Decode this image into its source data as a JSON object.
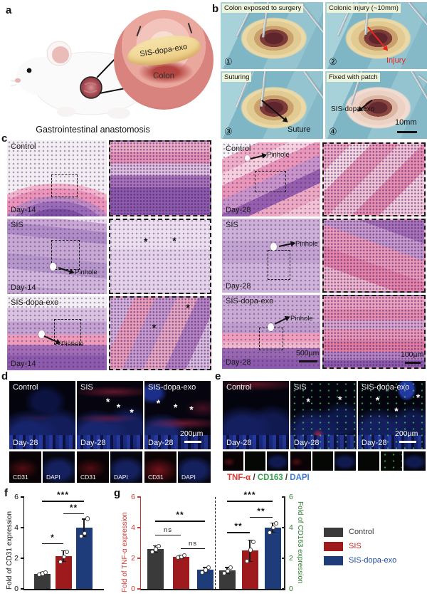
{
  "colors": {
    "control_bar": "#3a3a3a",
    "sis_bar": "#9e1a1d",
    "dopa_bar": "#1d3c79",
    "tnf_axis_red": "#cc3a33",
    "cd163_axis_green": "#2e7d32",
    "caption_red": "#e03a30",
    "caption_green": "#35a04a",
    "caption_blue": "#3b7bd4",
    "injury_red": "#e8261f"
  },
  "panel_a": {
    "letter": "a",
    "patch_label": "SIS-dopa-exo",
    "colon_label": "Colon",
    "caption": "Gastrointestinal anastomosis"
  },
  "panel_b": {
    "letter": "b",
    "photos": [
      {
        "number": "①",
        "title": "Colon exposed to surgery"
      },
      {
        "number": "②",
        "title": "Colonic injury (~10mm)",
        "annotation": "Injury"
      },
      {
        "number": "③",
        "title": "Suturing",
        "annotation": "Suture"
      },
      {
        "number": "④",
        "title": "Fixed with patch",
        "annotation": "SIS-dopa-exo",
        "scale_label": "10mm"
      }
    ]
  },
  "panel_c": {
    "letter": "c",
    "asterisk": "*",
    "rows_left": [
      {
        "group": "Control",
        "day": "Day-14"
      },
      {
        "group": "SIS",
        "day": "Day-14",
        "pinhole": "Pinhole"
      },
      {
        "group": "SIS-dopa-exo",
        "day": "Day-14",
        "pinhole": "Pinhole"
      }
    ],
    "rows_right": [
      {
        "group": "Control",
        "day": "Day-28",
        "pinhole": "Pinhole"
      },
      {
        "group": "SIS",
        "day": "Day-28",
        "pinhole": "Pinhole"
      },
      {
        "group": "SIS-dopa-exo",
        "day": "Day-28",
        "pinhole": "Pinhole",
        "scale_main": "500µm",
        "scale_inset": "100µm"
      }
    ]
  },
  "panel_d": {
    "letter": "d",
    "asterisk": "*",
    "columns": [
      {
        "group": "Control",
        "day": "Day-28",
        "channels": [
          "CD31",
          "DAPI"
        ]
      },
      {
        "group": "SIS",
        "day": "Day-28",
        "channels": [
          "CD31",
          "DAPI"
        ]
      },
      {
        "group": "SIS-dopa-exo",
        "day": "Day-28",
        "channels": [
          "CD31",
          "DAPI"
        ],
        "scale_label": "200µm"
      }
    ]
  },
  "panel_e": {
    "letter": "e",
    "asterisk": "*",
    "columns": [
      {
        "group": "Control",
        "day": "Day-28"
      },
      {
        "group": "SIS",
        "day": "Day-28"
      },
      {
        "group": "SIS-dopa-exo",
        "day": "Day-28",
        "scale_label": "200µm"
      }
    ],
    "caption": {
      "tnf": "TNF-α",
      "sep1": " / ",
      "cd163": "CD163",
      "sep2": " / ",
      "dapi": "DAPI"
    }
  },
  "panel_f": {
    "letter": "f"
  },
  "panel_g": {
    "letter": "g"
  },
  "legend": {
    "items": [
      {
        "label": "Control",
        "color": "#3a3a3a",
        "text_color": "#3a3a3a"
      },
      {
        "label": "SIS",
        "color": "#9e1a1d",
        "text_color": "#c42a26"
      },
      {
        "label": "SIS-dopa-exo",
        "color": "#1d3c79",
        "text_color": "#1f489b"
      }
    ]
  },
  "chart_data": [
    {
      "id": "f",
      "type": "bar",
      "ylabel": "Fold of CD31 expression",
      "ylim": [
        0,
        6
      ],
      "yticks": [
        0,
        2,
        4,
        6
      ],
      "categories": [
        "Control",
        "SIS",
        "SIS-dopa-exo"
      ],
      "values": [
        1.0,
        2.15,
        4.0
      ],
      "errors": [
        0.1,
        0.35,
        0.55
      ],
      "points": [
        [
          0.95,
          1.02,
          1.1
        ],
        [
          1.8,
          2.1,
          2.45
        ],
        [
          3.45,
          3.65,
          4.6
        ]
      ],
      "bar_colors": [
        "#3a3a3a",
        "#9e1a1d",
        "#1d3c79"
      ],
      "significance": [
        {
          "i": 0,
          "j": 1,
          "label": "*",
          "y": 3.0
        },
        {
          "i": 1,
          "j": 2,
          "label": "**",
          "y": 4.95
        },
        {
          "i": 0,
          "j": 2,
          "label": "***",
          "y": 5.75
        }
      ],
      "grid": false,
      "legend_position": "none"
    },
    {
      "id": "g",
      "type": "grouped-bar-dual-axis",
      "ylabel_left": "Fold of TNF-α expression",
      "ylabel_right": "Fold of CD163 expression",
      "ylim": [
        0,
        6
      ],
      "yticks": [
        0,
        2,
        4,
        6
      ],
      "categories": [
        "Control",
        "SIS",
        "SIS-dopa-exo"
      ],
      "bar_colors": [
        "#3a3a3a",
        "#9e1a1d",
        "#1d3c79"
      ],
      "groups": [
        {
          "name": "TNF-α",
          "values": [
            2.6,
            2.1,
            1.25
          ],
          "errors": [
            0.2,
            0.1,
            0.15
          ],
          "points": [
            [
              2.45,
              2.6,
              2.8
            ],
            [
              2.05,
              2.1,
              2.2
            ],
            [
              1.1,
              1.25,
              1.4
            ]
          ],
          "significance": [
            {
              "i": 0,
              "j": 1,
              "label": "ns",
              "y": 3.55
            },
            {
              "i": 1,
              "j": 2,
              "label": "ns",
              "y": 2.65
            },
            {
              "i": 0,
              "j": 2,
              "label": "**",
              "y": 4.45
            }
          ]
        },
        {
          "name": "CD163",
          "values": [
            1.2,
            2.5,
            4.0
          ],
          "errors": [
            0.2,
            0.7,
            0.3
          ],
          "points": [
            [
              1.05,
              1.2,
              1.4
            ],
            [
              1.85,
              2.55,
              3.1
            ],
            [
              3.7,
              4.0,
              4.3
            ]
          ],
          "significance": [
            {
              "i": 0,
              "j": 1,
              "label": "**",
              "y": 3.7
            },
            {
              "i": 1,
              "j": 2,
              "label": "**",
              "y": 4.7
            },
            {
              "i": 0,
              "j": 2,
              "label": "***",
              "y": 5.75
            }
          ]
        }
      ],
      "grid": false
    }
  ]
}
